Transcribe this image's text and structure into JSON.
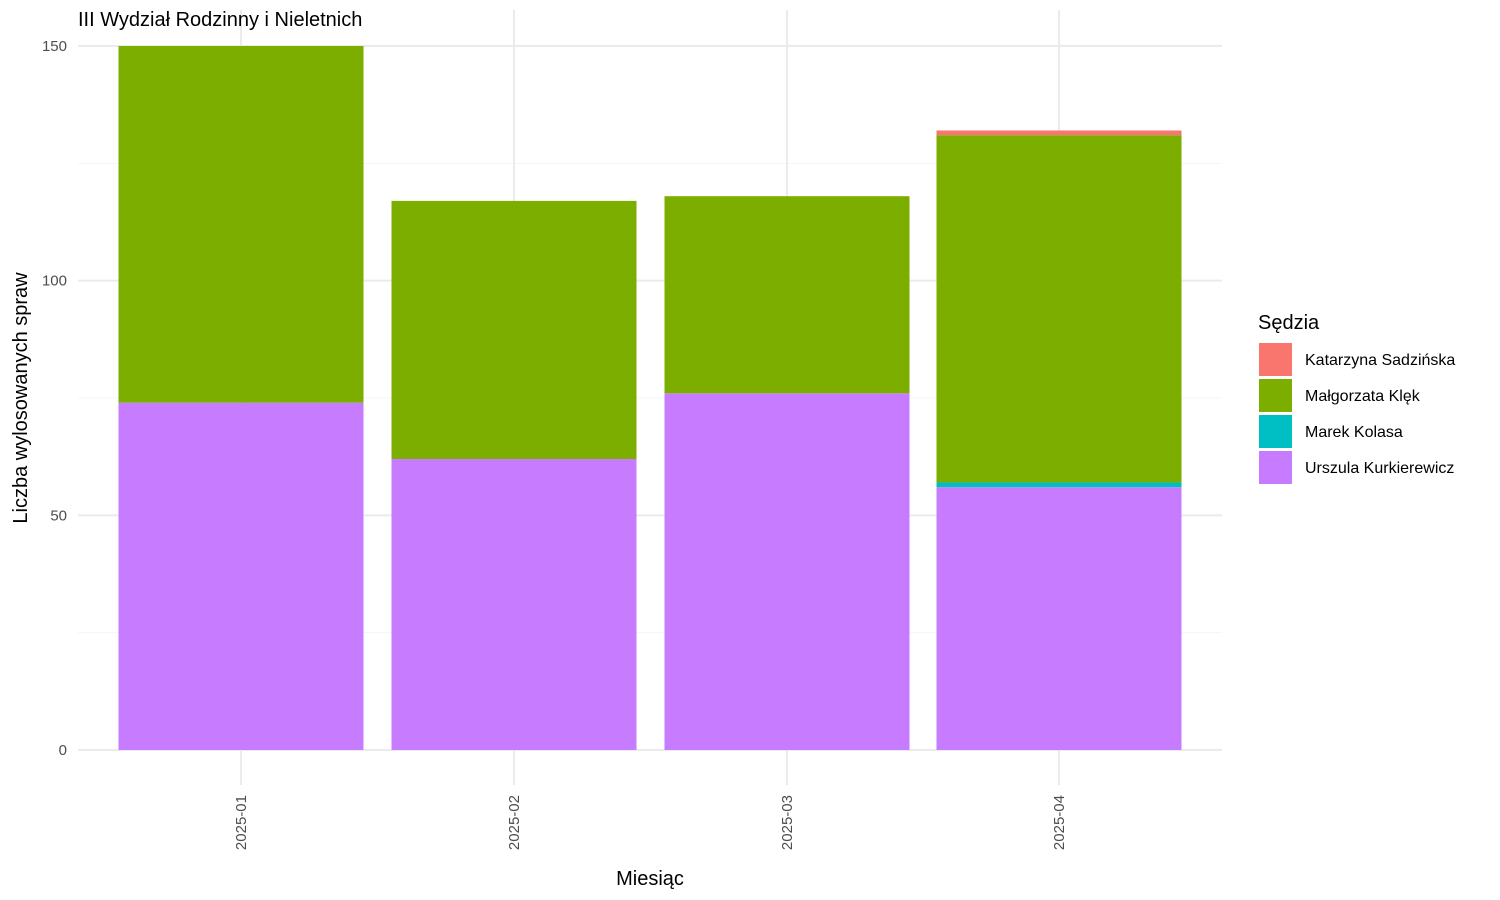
{
  "chart_data": {
    "type": "bar",
    "stacked": true,
    "title": "III Wydział Rodzinny i Nieletnich",
    "xlabel": "Miesiąc",
    "ylabel": "Liczba wylosowanych spraw",
    "ylim": [
      0,
      150
    ],
    "yticks": [
      0,
      50,
      100,
      150
    ],
    "categories": [
      "2025-01",
      "2025-02",
      "2025-03",
      "2025-04"
    ],
    "grid": true,
    "legend": {
      "title": "Sędzia",
      "position": "right"
    },
    "series": [
      {
        "name": "Urszula Kurkierewicz",
        "color": "#C77CFF",
        "values": [
          74,
          62,
          76,
          56
        ]
      },
      {
        "name": "Marek Kolasa",
        "color": "#00BFC4",
        "values": [
          0,
          0,
          0,
          1
        ]
      },
      {
        "name": "Małgorzata Klęk",
        "color": "#7CAE00",
        "values": [
          76,
          55,
          42,
          74
        ]
      },
      {
        "name": "Katarzyna Sadzińska",
        "color": "#F8766D",
        "values": [
          0,
          0,
          0,
          1
        ]
      }
    ],
    "legend_order": [
      "Katarzyna Sadzińska",
      "Małgorzata Klęk",
      "Marek Kolasa",
      "Urszula Kurkierewicz"
    ]
  }
}
